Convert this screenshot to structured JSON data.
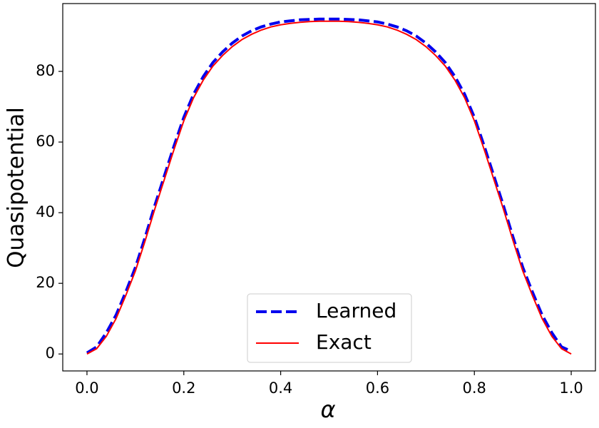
{
  "chart_data": {
    "type": "line",
    "xlabel": "α",
    "ylabel": "Quasipotential",
    "x": [
      0,
      0.02,
      0.04,
      0.06,
      0.08,
      0.1,
      0.12,
      0.14,
      0.16,
      0.18,
      0.2,
      0.22,
      0.24,
      0.26,
      0.28,
      0.3,
      0.32,
      0.34,
      0.36,
      0.38,
      0.4,
      0.42,
      0.44,
      0.46,
      0.48,
      0.5,
      0.52,
      0.54,
      0.56,
      0.58,
      0.6,
      0.62,
      0.64,
      0.66,
      0.68,
      0.7,
      0.72,
      0.74,
      0.76,
      0.78,
      0.8,
      0.82,
      0.84,
      0.86,
      0.88,
      0.9,
      0.92,
      0.94,
      0.96,
      0.98,
      1
    ],
    "series": [
      {
        "name": "Learned",
        "color": "#0000ee",
        "linestyle": "dashed",
        "values": [
          0.3,
          2,
          6,
          11,
          17.5,
          24.5,
          33,
          42,
          50.5,
          59,
          67,
          73.5,
          78.5,
          82.5,
          85.5,
          88,
          90,
          91.5,
          92.6,
          93.4,
          94,
          94.3,
          94.6,
          94.7,
          94.8,
          94.8,
          94.8,
          94.7,
          94.6,
          94.3,
          94,
          93.4,
          92.6,
          91.5,
          90,
          88,
          85.5,
          82.5,
          78.5,
          73.5,
          67,
          59,
          50.5,
          42,
          33,
          24.5,
          17.5,
          11,
          6,
          2,
          0.8
        ]
      },
      {
        "name": "Exact",
        "color": "#ff0000",
        "linestyle": "solid",
        "values": [
          0,
          1.5,
          5,
          10,
          16.5,
          23.5,
          32,
          41,
          49.5,
          58,
          66,
          72.5,
          77.5,
          81.5,
          84.5,
          87,
          89,
          90.5,
          91.7,
          92.6,
          93.2,
          93.6,
          93.9,
          94.1,
          94.2,
          94.2,
          94.2,
          94.1,
          93.9,
          93.6,
          93.2,
          92.6,
          91.7,
          90.5,
          89,
          87,
          84.5,
          81.5,
          77.5,
          72.5,
          66,
          58,
          49.5,
          41,
          32,
          23.5,
          16.5,
          10,
          5,
          1.5,
          0
        ]
      }
    ],
    "xlim": [
      -0.05,
      1.05
    ],
    "ylim": [
      -4.8,
      99.2
    ],
    "xticks": [
      {
        "value": 0,
        "label": "0.0"
      },
      0.2,
      0.4,
      0.6,
      0.8,
      {
        "value": 1,
        "label": "1.0"
      }
    ],
    "yticks": [
      0,
      20,
      40,
      60,
      80
    ],
    "legend": "lower center"
  }
}
